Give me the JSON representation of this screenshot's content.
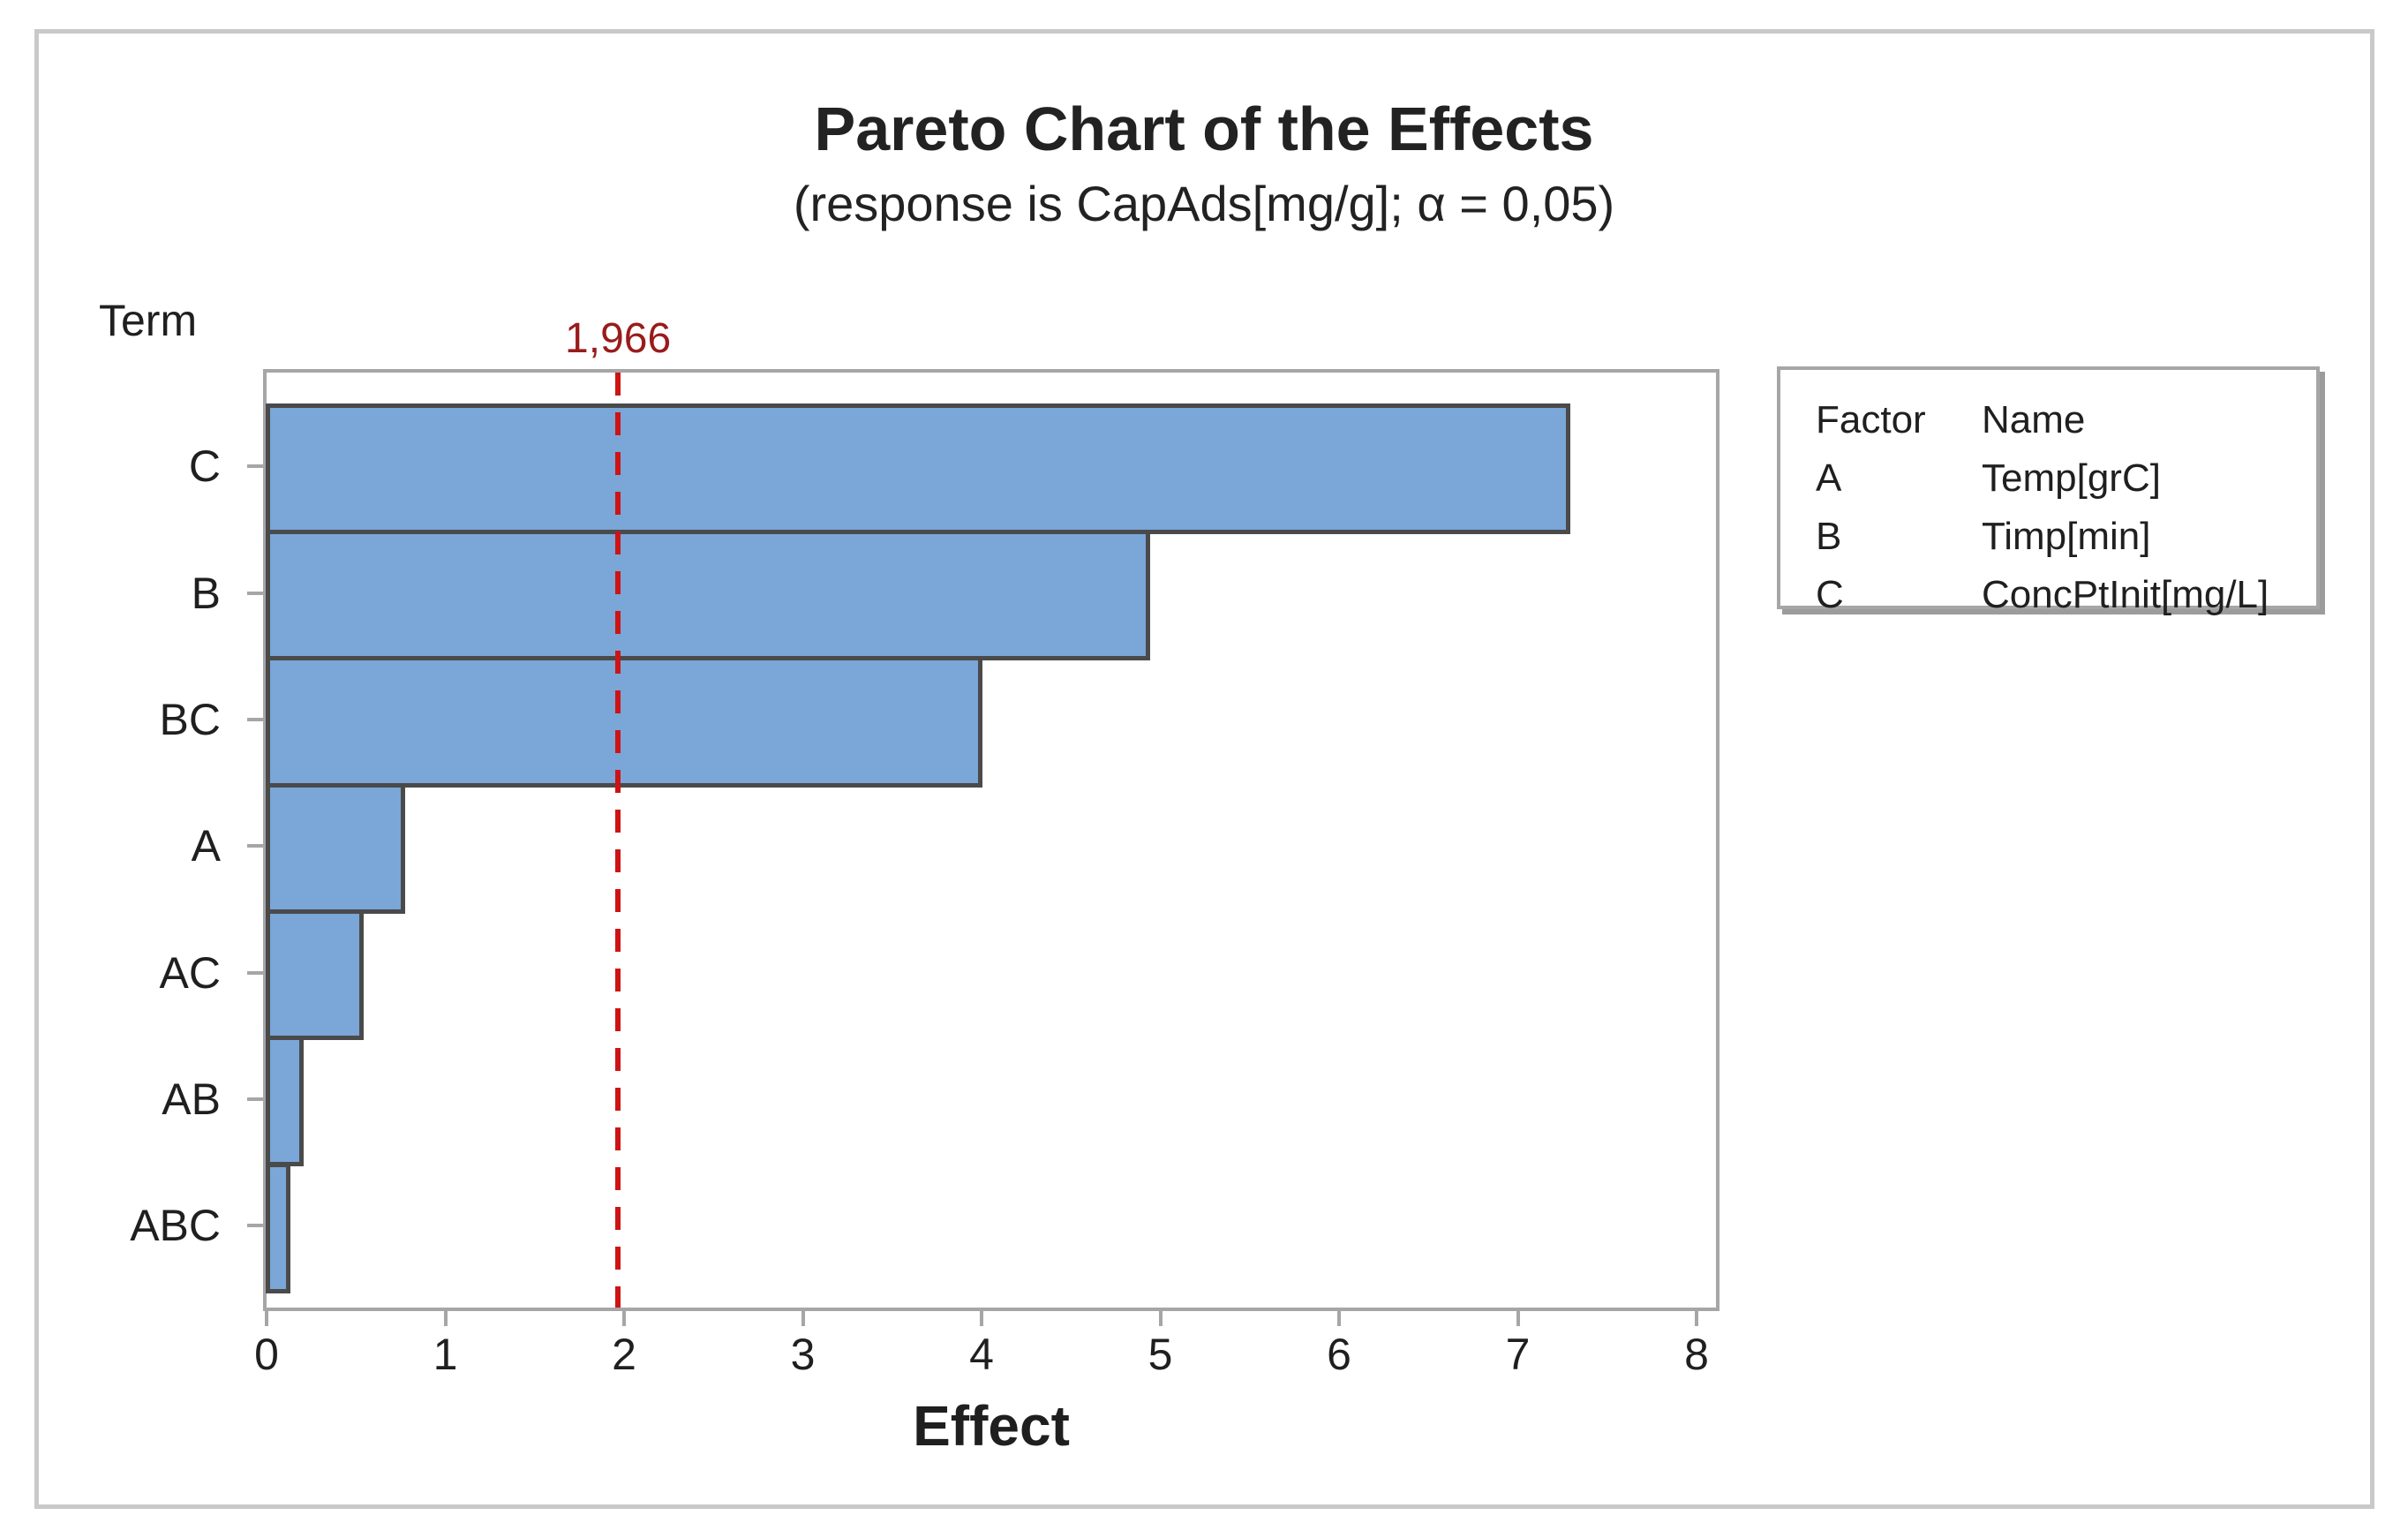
{
  "title": "Pareto Chart of the Effects",
  "subtitle": "(response is CapAds[mg/g]; α = 0,05)",
  "axis": {
    "y_title": "Term",
    "x_title": "Effect"
  },
  "chart_data": {
    "type": "bar",
    "orientation": "horizontal",
    "categories": [
      "C",
      "B",
      "BC",
      "A",
      "AC",
      "AB",
      "ABC"
    ],
    "values": [
      7.3,
      4.95,
      4.01,
      0.78,
      0.55,
      0.21,
      0.14
    ],
    "title": "Pareto Chart of the Effects",
    "subtitle": "(response is CapAds[mg/g]; α = 0,05)",
    "xlabel": "Effect",
    "ylabel": "Term",
    "xlim": [
      0,
      8
    ],
    "xticks": [
      0,
      1,
      2,
      3,
      4,
      5,
      6,
      7,
      8
    ],
    "grid": false,
    "reference_line": {
      "value": 1.966,
      "label": "1,966"
    },
    "colors": {
      "bar_fill": "#7aa6d8",
      "bar_border": "#4a4a4a",
      "plot_border": "#a6a6a6",
      "reference_line": "#cc1414",
      "reference_label": "#9a1b1b",
      "text": "#1f1f1f"
    }
  },
  "legend": {
    "headers": [
      "Factor",
      "Name"
    ],
    "rows": [
      {
        "factor": "A",
        "name": "Temp[grC]"
      },
      {
        "factor": "B",
        "name": "Timp[min]"
      },
      {
        "factor": "C",
        "name": "ConcPtInit[mg/L]"
      }
    ]
  }
}
